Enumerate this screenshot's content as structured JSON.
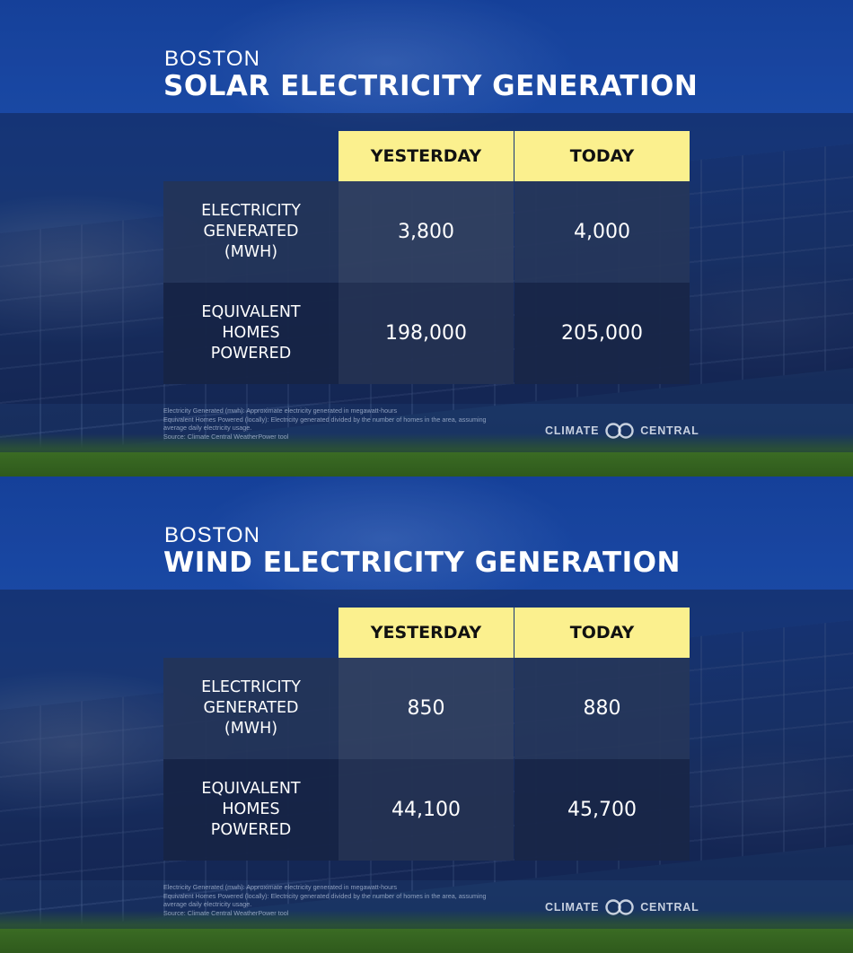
{
  "panels": [
    {
      "city": "BOSTON",
      "headline": "SOLAR ELECTRICITY GENERATION",
      "columns": [
        "YESTERDAY",
        "TODAY"
      ],
      "rows": [
        {
          "label": [
            "ELECTRICITY",
            "GENERATED",
            "(MWH)"
          ],
          "yesterday": "3,800",
          "today": "4,000"
        },
        {
          "label": [
            "EQUIVALENT",
            "HOMES",
            "POWERED"
          ],
          "yesterday": "198,000",
          "today": "205,000"
        }
      ],
      "notes": [
        "Electricity Generated (mwh): Approximate electricity generated in megawatt-hours",
        "Equivalent Homes Powered (locally): Electricity generated divided by the number of homes in the area, assuming",
        "average daily electricity usage.",
        "Source: Climate Central WeatherPower tool"
      ],
      "brand": {
        "left": "CLIMATE",
        "right": "CENTRAL",
        "icon": "climate-central-logo-icon"
      }
    },
    {
      "city": "BOSTON",
      "headline": "WIND ELECTRICITY GENERATION",
      "columns": [
        "YESTERDAY",
        "TODAY"
      ],
      "rows": [
        {
          "label": [
            "ELECTRICITY",
            "GENERATED",
            "(MWH)"
          ],
          "yesterday": "850",
          "today": "880"
        },
        {
          "label": [
            "EQUIVALENT",
            "HOMES",
            "POWERED"
          ],
          "yesterday": "44,100",
          "today": "45,700"
        }
      ],
      "notes": [
        "Electricity Generated (mwh): Approximate electricity generated in megawatt-hours",
        "Equivalent Homes Powered (locally): Electricity generated divided by the number of homes in the area, assuming",
        "average daily electricity usage.",
        "Source: Climate Central WeatherPower tool"
      ],
      "brand": {
        "left": "CLIMATE",
        "right": "CENTRAL",
        "icon": "climate-central-logo-icon"
      }
    }
  ],
  "colors": {
    "header_yellow": "#fbf08e",
    "sky_blue": "#1f55b8",
    "cell_dark": "#182850"
  }
}
